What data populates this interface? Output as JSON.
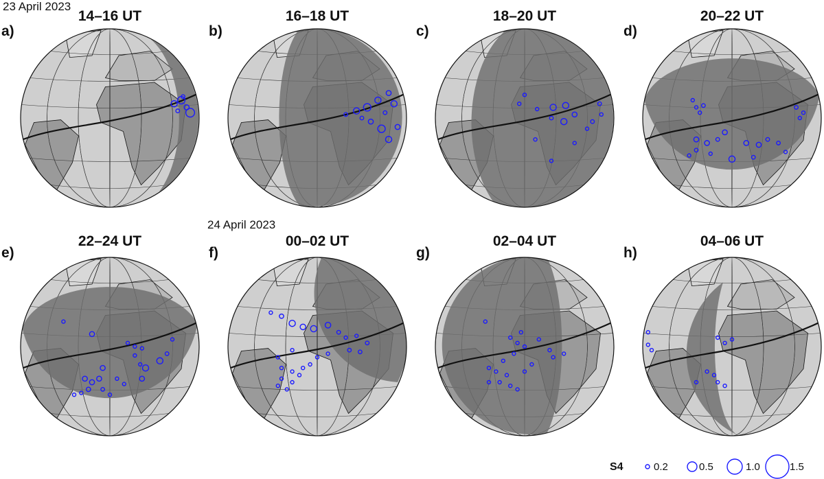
{
  "dates": {
    "first": "23 April 2023",
    "second": "24 April 2023"
  },
  "colors": {
    "circle": "#1a1aff",
    "night": "#6e6e6e",
    "ocean_day": "#cfcfcf",
    "land_day": "#9a9a9a"
  },
  "panels": [
    {
      "label": "a)",
      "title": "14–16 UT",
      "night_side": "right-narrow",
      "circles": [
        [
          0.86,
          0.42,
          0.05
        ],
        [
          0.9,
          0.4,
          0.06
        ],
        [
          0.93,
          0.44,
          0.04
        ],
        [
          0.95,
          0.47,
          0.07
        ],
        [
          0.88,
          0.46,
          0.03
        ],
        [
          0.91,
          0.38,
          0.03
        ]
      ]
    },
    {
      "label": "b)",
      "title": "16–18 UT",
      "night_side": "right-half",
      "circles": [
        [
          0.66,
          0.48,
          0.03
        ],
        [
          0.72,
          0.46,
          0.05
        ],
        [
          0.78,
          0.44,
          0.06
        ],
        [
          0.84,
          0.4,
          0.05
        ],
        [
          0.9,
          0.36,
          0.04
        ],
        [
          0.93,
          0.42,
          0.05
        ],
        [
          0.8,
          0.52,
          0.04
        ],
        [
          0.86,
          0.56,
          0.06
        ],
        [
          0.9,
          0.62,
          0.05
        ],
        [
          0.95,
          0.55,
          0.04
        ],
        [
          0.75,
          0.5,
          0.03
        ],
        [
          0.88,
          0.47,
          0.03
        ]
      ]
    },
    {
      "label": "c)",
      "title": "18–20 UT",
      "night_side": "right-large",
      "circles": [
        [
          0.5,
          0.37,
          0.015
        ],
        [
          0.47,
          0.42,
          0.01
        ],
        [
          0.57,
          0.45,
          0.02
        ],
        [
          0.66,
          0.44,
          0.05
        ],
        [
          0.73,
          0.43,
          0.05
        ],
        [
          0.65,
          0.5,
          0.03
        ],
        [
          0.72,
          0.52,
          0.05
        ],
        [
          0.78,
          0.48,
          0.04
        ],
        [
          0.92,
          0.42,
          0.03
        ],
        [
          0.93,
          0.48,
          0.025
        ],
        [
          0.88,
          0.52,
          0.03
        ],
        [
          0.85,
          0.56,
          0.025
        ],
        [
          0.56,
          0.62,
          0.025
        ],
        [
          0.78,
          0.64,
          0.02
        ],
        [
          0.65,
          0.74,
          0.015
        ]
      ]
    },
    {
      "label": "d)",
      "title": "20–22 UT",
      "night_side": "mostly",
      "circles": [
        [
          0.28,
          0.4,
          0.025
        ],
        [
          0.3,
          0.44,
          0.02
        ],
        [
          0.34,
          0.43,
          0.03
        ],
        [
          0.32,
          0.47,
          0.025
        ],
        [
          0.86,
          0.44,
          0.03
        ],
        [
          0.9,
          0.47,
          0.025
        ],
        [
          0.88,
          0.5,
          0.02
        ],
        [
          0.46,
          0.58,
          0.04
        ],
        [
          0.3,
          0.62,
          0.04
        ],
        [
          0.36,
          0.64,
          0.04
        ],
        [
          0.42,
          0.62,
          0.03
        ],
        [
          0.3,
          0.68,
          0.03
        ],
        [
          0.38,
          0.7,
          0.025
        ],
        [
          0.58,
          0.64,
          0.04
        ],
        [
          0.65,
          0.65,
          0.04
        ],
        [
          0.7,
          0.62,
          0.03
        ],
        [
          0.76,
          0.64,
          0.03
        ],
        [
          0.62,
          0.72,
          0.03
        ],
        [
          0.5,
          0.73,
          0.05
        ],
        [
          0.8,
          0.69,
          0.02
        ],
        [
          0.26,
          0.71,
          0.02
        ]
      ]
    },
    {
      "label": "e)",
      "title": "22–24 UT",
      "night_side": "mostly",
      "circles": [
        [
          0.24,
          0.36,
          0.02
        ],
        [
          0.4,
          0.43,
          0.04
        ],
        [
          0.6,
          0.48,
          0.02
        ],
        [
          0.64,
          0.5,
          0.015
        ],
        [
          0.68,
          0.51,
          0.02
        ],
        [
          0.64,
          0.55,
          0.025
        ],
        [
          0.67,
          0.6,
          0.02
        ],
        [
          0.85,
          0.46,
          0.025
        ],
        [
          0.82,
          0.54,
          0.03
        ],
        [
          0.78,
          0.58,
          0.05
        ],
        [
          0.7,
          0.62,
          0.05
        ],
        [
          0.68,
          0.68,
          0.04
        ],
        [
          0.46,
          0.62,
          0.04
        ],
        [
          0.44,
          0.68,
          0.04
        ],
        [
          0.4,
          0.7,
          0.04
        ],
        [
          0.36,
          0.68,
          0.04
        ],
        [
          0.38,
          0.74,
          0.035
        ],
        [
          0.46,
          0.74,
          0.03
        ],
        [
          0.34,
          0.76,
          0.02
        ],
        [
          0.3,
          0.77,
          0.02
        ],
        [
          0.5,
          0.77,
          0.02
        ],
        [
          0.54,
          0.68,
          0.02
        ],
        [
          0.58,
          0.71,
          0.02
        ]
      ]
    },
    {
      "label": "f)",
      "title": "00–02 UT",
      "night_side": "left-large",
      "circles": [
        [
          0.24,
          0.31,
          0.01
        ],
        [
          0.3,
          0.33,
          0.035
        ],
        [
          0.36,
          0.37,
          0.05
        ],
        [
          0.42,
          0.39,
          0.045
        ],
        [
          0.48,
          0.4,
          0.05
        ],
        [
          0.56,
          0.38,
          0.045
        ],
        [
          0.62,
          0.42,
          0.03
        ],
        [
          0.66,
          0.45,
          0.025
        ],
        [
          0.72,
          0.44,
          0.025
        ],
        [
          0.78,
          0.48,
          0.03
        ],
        [
          0.74,
          0.53,
          0.03
        ],
        [
          0.68,
          0.52,
          0.03
        ],
        [
          0.36,
          0.52,
          0.02
        ],
        [
          0.28,
          0.56,
          0.025
        ],
        [
          0.3,
          0.62,
          0.02
        ],
        [
          0.36,
          0.64,
          0.025
        ],
        [
          0.42,
          0.62,
          0.02
        ],
        [
          0.46,
          0.6,
          0.02
        ],
        [
          0.3,
          0.68,
          0.015
        ],
        [
          0.36,
          0.7,
          0.02
        ],
        [
          0.4,
          0.66,
          0.015
        ],
        [
          0.5,
          0.56,
          0.015
        ],
        [
          0.56,
          0.54,
          0.015
        ],
        [
          0.28,
          0.72,
          0.015
        ],
        [
          0.33,
          0.74,
          0.015
        ]
      ]
    },
    {
      "label": "g)",
      "title": "02–04 UT",
      "night_side": "left-half",
      "circles": [
        [
          0.28,
          0.36,
          0.01
        ],
        [
          0.42,
          0.45,
          0.015
        ],
        [
          0.48,
          0.42,
          0.02
        ],
        [
          0.46,
          0.48,
          0.02
        ],
        [
          0.5,
          0.5,
          0.015
        ],
        [
          0.58,
          0.46,
          0.015
        ],
        [
          0.44,
          0.54,
          0.02
        ],
        [
          0.38,
          0.58,
          0.015
        ],
        [
          0.3,
          0.62,
          0.025
        ],
        [
          0.34,
          0.64,
          0.025
        ],
        [
          0.4,
          0.66,
          0.02
        ],
        [
          0.36,
          0.7,
          0.02
        ],
        [
          0.3,
          0.7,
          0.02
        ],
        [
          0.42,
          0.72,
          0.015
        ],
        [
          0.46,
          0.74,
          0.015
        ],
        [
          0.5,
          0.64,
          0.02
        ],
        [
          0.54,
          0.6,
          0.015
        ],
        [
          0.64,
          0.52,
          0.015
        ],
        [
          0.66,
          0.56,
          0.015
        ],
        [
          0.72,
          0.54,
          0.01
        ]
      ]
    },
    {
      "label": "h)",
      "title": "04–06 UT",
      "night_side": "left-narrow",
      "circles": [
        [
          0.03,
          0.42,
          0.01
        ],
        [
          0.03,
          0.49,
          0.01
        ],
        [
          0.05,
          0.52,
          0.01
        ],
        [
          0.42,
          0.45,
          0.012
        ],
        [
          0.46,
          0.48,
          0.01
        ],
        [
          0.5,
          0.46,
          0.01
        ],
        [
          0.36,
          0.64,
          0.012
        ],
        [
          0.4,
          0.66,
          0.012
        ],
        [
          0.42,
          0.7,
          0.01
        ],
        [
          0.3,
          0.7,
          0.01
        ],
        [
          0.46,
          0.72,
          0.01
        ]
      ]
    }
  ],
  "legend": {
    "title": "S4",
    "entries": [
      {
        "label": "0.2",
        "value": 0.2
      },
      {
        "label": "0.5",
        "value": 0.5
      },
      {
        "label": "1.0",
        "value": 1.0
      },
      {
        "label": "1.5",
        "value": 1.5
      }
    ]
  }
}
